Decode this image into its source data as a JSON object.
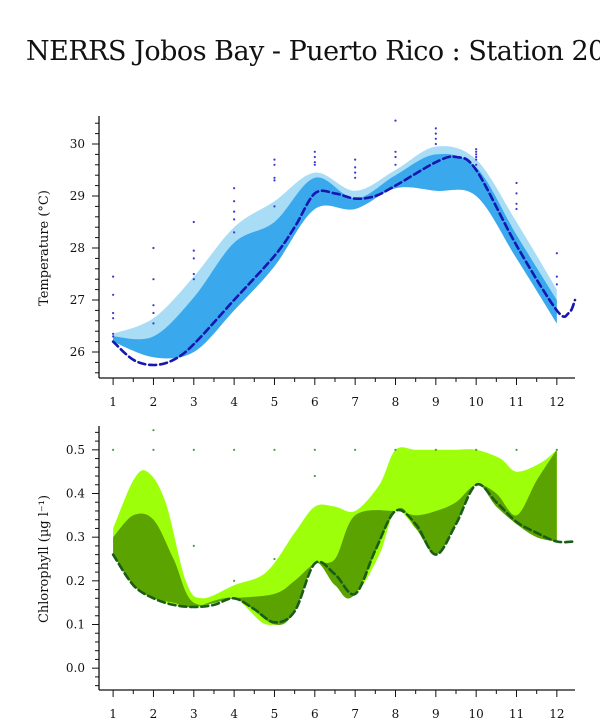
{
  "title": "NERRS Jobos Bay - Puerto Rico : Station 20",
  "chart_data": [
    {
      "type": "area",
      "ylabel": "Temperature (°C)",
      "x": [
        1,
        2,
        3,
        4,
        5,
        6,
        7,
        8,
        9,
        10,
        11,
        12
      ],
      "xlim": [
        0.65,
        12.45
      ],
      "ylim": [
        25.5,
        30.5
      ],
      "yticks": [
        26,
        27,
        28,
        29,
        30
      ],
      "colors": {
        "outer_band": "#a8ddf5",
        "inner_band": "#3aa8ec",
        "line": "#1616b0",
        "points": "#3a3acc"
      },
      "outer_band": {
        "x": [
          1,
          2,
          3,
          4,
          5,
          6,
          7,
          8,
          9,
          10,
          11,
          12
        ],
        "upper": [
          26.35,
          26.65,
          27.45,
          28.4,
          28.9,
          29.45,
          29.1,
          29.5,
          29.95,
          29.7,
          28.5,
          27.2
        ],
        "lower": [
          26.2,
          25.9,
          26.0,
          26.8,
          27.65,
          28.75,
          28.75,
          29.15,
          29.1,
          29.0,
          27.8,
          26.55
        ]
      },
      "inner_band": {
        "x": [
          1,
          2,
          3,
          4,
          5,
          6,
          7,
          8,
          9,
          10,
          11,
          12
        ],
        "upper": [
          26.3,
          26.3,
          27.05,
          28.1,
          28.5,
          29.35,
          28.95,
          29.4,
          29.8,
          29.55,
          28.25,
          27.0
        ],
        "lower": [
          26.2,
          25.9,
          26.0,
          26.8,
          27.65,
          28.75,
          28.75,
          29.15,
          29.1,
          29.0,
          27.8,
          26.55
        ]
      },
      "median_line": {
        "x": [
          1,
          1.5,
          2,
          2.5,
          3,
          4,
          5,
          5.5,
          6,
          6.5,
          7,
          7.5,
          8,
          9,
          9.5,
          10,
          11,
          12,
          12.3,
          12.45
        ],
        "y": [
          26.2,
          25.85,
          25.75,
          25.85,
          26.15,
          27.0,
          27.85,
          28.4,
          29.05,
          29.05,
          28.95,
          29.0,
          29.2,
          29.65,
          29.75,
          29.5,
          28.05,
          26.8,
          26.75,
          27.0
        ]
      },
      "points": [
        {
          "x": 1,
          "y": 27.45
        },
        {
          "x": 1,
          "y": 27.1
        },
        {
          "x": 1,
          "y": 26.75
        },
        {
          "x": 1,
          "y": 26.65
        },
        {
          "x": 1,
          "y": 26.35
        },
        {
          "x": 1,
          "y": 26.3
        },
        {
          "x": 2,
          "y": 28.0
        },
        {
          "x": 2,
          "y": 27.4
        },
        {
          "x": 2,
          "y": 26.9
        },
        {
          "x": 2,
          "y": 26.75
        },
        {
          "x": 2,
          "y": 26.55
        },
        {
          "x": 3,
          "y": 28.5
        },
        {
          "x": 3,
          "y": 27.95
        },
        {
          "x": 3,
          "y": 27.8
        },
        {
          "x": 3,
          "y": 27.5
        },
        {
          "x": 3,
          "y": 27.4
        },
        {
          "x": 4,
          "y": 29.15
        },
        {
          "x": 4,
          "y": 28.9
        },
        {
          "x": 4,
          "y": 28.7
        },
        {
          "x": 4,
          "y": 28.55
        },
        {
          "x": 4,
          "y": 28.3
        },
        {
          "x": 5,
          "y": 29.7
        },
        {
          "x": 5,
          "y": 29.6
        },
        {
          "x": 5,
          "y": 29.35
        },
        {
          "x": 5,
          "y": 29.3
        },
        {
          "x": 5,
          "y": 28.8
        },
        {
          "x": 6,
          "y": 29.85
        },
        {
          "x": 6,
          "y": 29.75
        },
        {
          "x": 6,
          "y": 29.65
        },
        {
          "x": 6,
          "y": 29.6
        },
        {
          "x": 7,
          "y": 29.7
        },
        {
          "x": 7,
          "y": 29.55
        },
        {
          "x": 7,
          "y": 29.45
        },
        {
          "x": 7,
          "y": 29.35
        },
        {
          "x": 8,
          "y": 30.45
        },
        {
          "x": 8,
          "y": 29.85
        },
        {
          "x": 8,
          "y": 29.75
        },
        {
          "x": 8,
          "y": 29.6
        },
        {
          "x": 9,
          "y": 30.3
        },
        {
          "x": 9,
          "y": 30.2
        },
        {
          "x": 9,
          "y": 30.1
        },
        {
          "x": 9,
          "y": 30.0
        },
        {
          "x": 10,
          "y": 29.9
        },
        {
          "x": 10,
          "y": 29.85
        },
        {
          "x": 10,
          "y": 29.8
        },
        {
          "x": 10,
          "y": 29.75
        },
        {
          "x": 10,
          "y": 29.7
        },
        {
          "x": 10,
          "y": 29.6
        },
        {
          "x": 11,
          "y": 29.25
        },
        {
          "x": 11,
          "y": 29.05
        },
        {
          "x": 11,
          "y": 28.85
        },
        {
          "x": 11,
          "y": 28.75
        },
        {
          "x": 12,
          "y": 27.9
        },
        {
          "x": 12,
          "y": 27.45
        },
        {
          "x": 12,
          "y": 27.3
        }
      ]
    },
    {
      "type": "area",
      "ylabel": "Chlorophyll (µg l⁻¹)",
      "x": [
        1,
        2,
        3,
        4,
        5,
        6,
        7,
        8,
        9,
        10,
        11,
        12
      ],
      "xlim": [
        0.65,
        12.45
      ],
      "ylim": [
        -0.05,
        0.55
      ],
      "yticks": [
        0.0,
        0.1,
        0.2,
        0.3,
        0.4,
        0.5
      ],
      "yticklabels": [
        "0.0",
        "0.1",
        "0.2",
        "0.3",
        "0.4",
        "0.5"
      ],
      "colors": {
        "outer_band": "#9eff0a",
        "inner_band": "#5aa300",
        "line": "#1a5c1a",
        "points": "#4a9a4a"
      },
      "outer_band": {
        "x": [
          1,
          1.5,
          1.85,
          2.3,
          2.8,
          3.2,
          4,
          4.8,
          5.5,
          6,
          6.5,
          7,
          7.6,
          8,
          8.5,
          9,
          9.5,
          10,
          10.6,
          11,
          11.6,
          12
        ],
        "upper": [
          0.32,
          0.43,
          0.45,
          0.38,
          0.2,
          0.16,
          0.19,
          0.22,
          0.31,
          0.37,
          0.37,
          0.36,
          0.42,
          0.5,
          0.5,
          0.5,
          0.5,
          0.5,
          0.48,
          0.45,
          0.47,
          0.5
        ],
        "lower": [
          0.26,
          0.19,
          0.17,
          0.15,
          0.14,
          0.14,
          0.16,
          0.1,
          0.13,
          0.24,
          0.19,
          0.17,
          0.26,
          0.36,
          0.32,
          0.26,
          0.33,
          0.42,
          0.37,
          0.33,
          0.3,
          0.29
        ]
      },
      "inner_band": {
        "x": [
          1,
          1.5,
          2,
          2.5,
          3,
          4,
          5,
          5.5,
          6,
          6.5,
          7,
          8,
          8.5,
          9,
          9.5,
          10,
          10.5,
          11,
          11.5,
          12
        ],
        "upper": [
          0.3,
          0.35,
          0.34,
          0.25,
          0.15,
          0.16,
          0.17,
          0.2,
          0.24,
          0.25,
          0.35,
          0.36,
          0.35,
          0.36,
          0.38,
          0.42,
          0.4,
          0.35,
          0.43,
          0.5
        ],
        "lower": [
          0.26,
          0.19,
          0.16,
          0.15,
          0.14,
          0.16,
          0.1,
          0.13,
          0.24,
          0.19,
          0.17,
          0.36,
          0.32,
          0.26,
          0.33,
          0.42,
          0.37,
          0.33,
          0.3,
          0.29
        ]
      },
      "median_line": {
        "x": [
          1,
          1.5,
          2,
          2.5,
          3,
          3.5,
          4,
          4.5,
          5,
          5.5,
          6,
          6.5,
          7,
          7.5,
          8,
          8.5,
          9,
          9.5,
          10,
          10.5,
          11,
          11.5,
          12,
          12.45
        ],
        "y": [
          0.26,
          0.19,
          0.16,
          0.145,
          0.14,
          0.145,
          0.16,
          0.135,
          0.105,
          0.13,
          0.24,
          0.215,
          0.17,
          0.27,
          0.36,
          0.33,
          0.26,
          0.33,
          0.42,
          0.38,
          0.335,
          0.31,
          0.29,
          0.29
        ]
      },
      "points": [
        {
          "x": 1,
          "y": 0.5
        },
        {
          "x": 2,
          "y": 0.545
        },
        {
          "x": 2,
          "y": 0.5
        },
        {
          "x": 3,
          "y": 0.5
        },
        {
          "x": 3,
          "y": 0.28
        },
        {
          "x": 4,
          "y": 0.5
        },
        {
          "x": 4,
          "y": 0.2
        },
        {
          "x": 5,
          "y": 0.5
        },
        {
          "x": 5,
          "y": 0.25
        },
        {
          "x": 6,
          "y": 0.5
        },
        {
          "x": 6,
          "y": 0.44
        },
        {
          "x": 7,
          "y": 0.5
        },
        {
          "x": 8,
          "y": 0.5
        },
        {
          "x": 9,
          "y": 0.5
        },
        {
          "x": 10,
          "y": 0.5
        },
        {
          "x": 11,
          "y": 0.5
        },
        {
          "x": 12,
          "y": 0.5
        }
      ]
    }
  ]
}
